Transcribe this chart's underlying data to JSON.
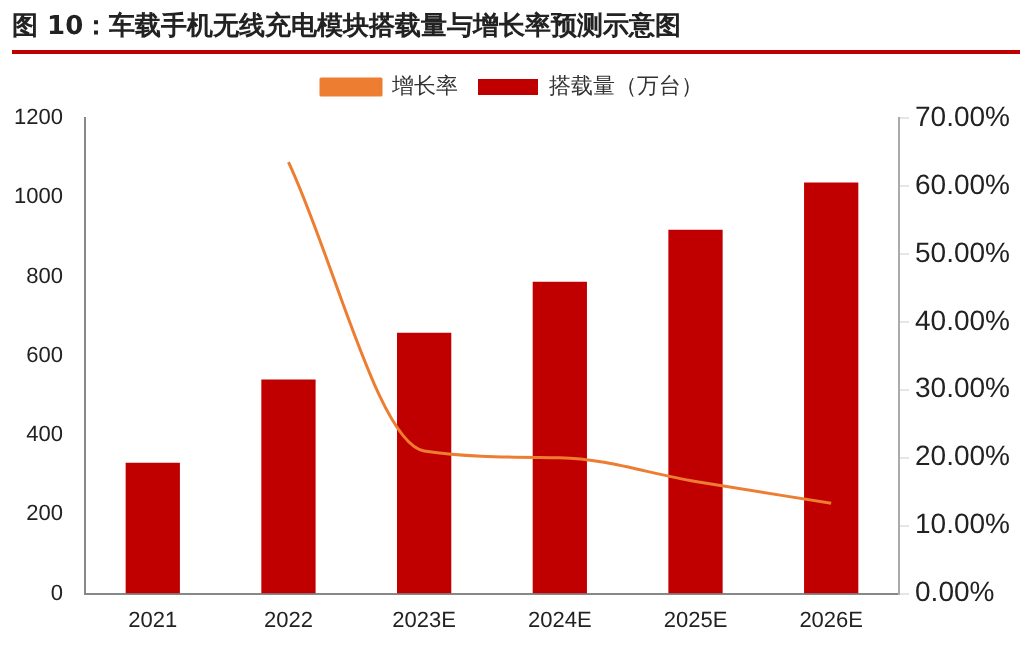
{
  "chart_data": {
    "type": "bar",
    "title": "图 10：车载手机无线充电模块搭载量与增长率预测示意图",
    "categories": [
      "2021",
      "2022",
      "2023E",
      "2024E",
      "2025E",
      "2026E"
    ],
    "series": [
      {
        "name": "搭载量（万台）",
        "color": "#c00000",
        "values": [
          330,
          540,
          658,
          787,
          918,
          1037
        ]
      },
      {
        "name": "增长率",
        "type": "line",
        "axis": "y2",
        "color": "#ed7d31",
        "values": [
          null,
          63.5,
          21,
          20,
          16.5,
          13.3
        ]
      }
    ],
    "ylim": [
      0,
      1200
    ],
    "yticks": [
      0,
      200,
      400,
      600,
      800,
      1000,
      1200
    ],
    "y2lim": [
      0,
      70
    ],
    "y2ticks": [
      {
        "value": 0,
        "label": "0.00%"
      },
      {
        "value": 10,
        "label": "10.00%"
      },
      {
        "value": 20,
        "label": "20.00%"
      },
      {
        "value": 30,
        "label": "30.00%"
      },
      {
        "value": 40,
        "label": "40.00%"
      },
      {
        "value": 50,
        "label": "50.00%"
      },
      {
        "value": 60,
        "label": "60.00%"
      },
      {
        "value": 70,
        "label": "70.00%"
      }
    ],
    "grid": false,
    "legend": "top",
    "marker": "none"
  }
}
